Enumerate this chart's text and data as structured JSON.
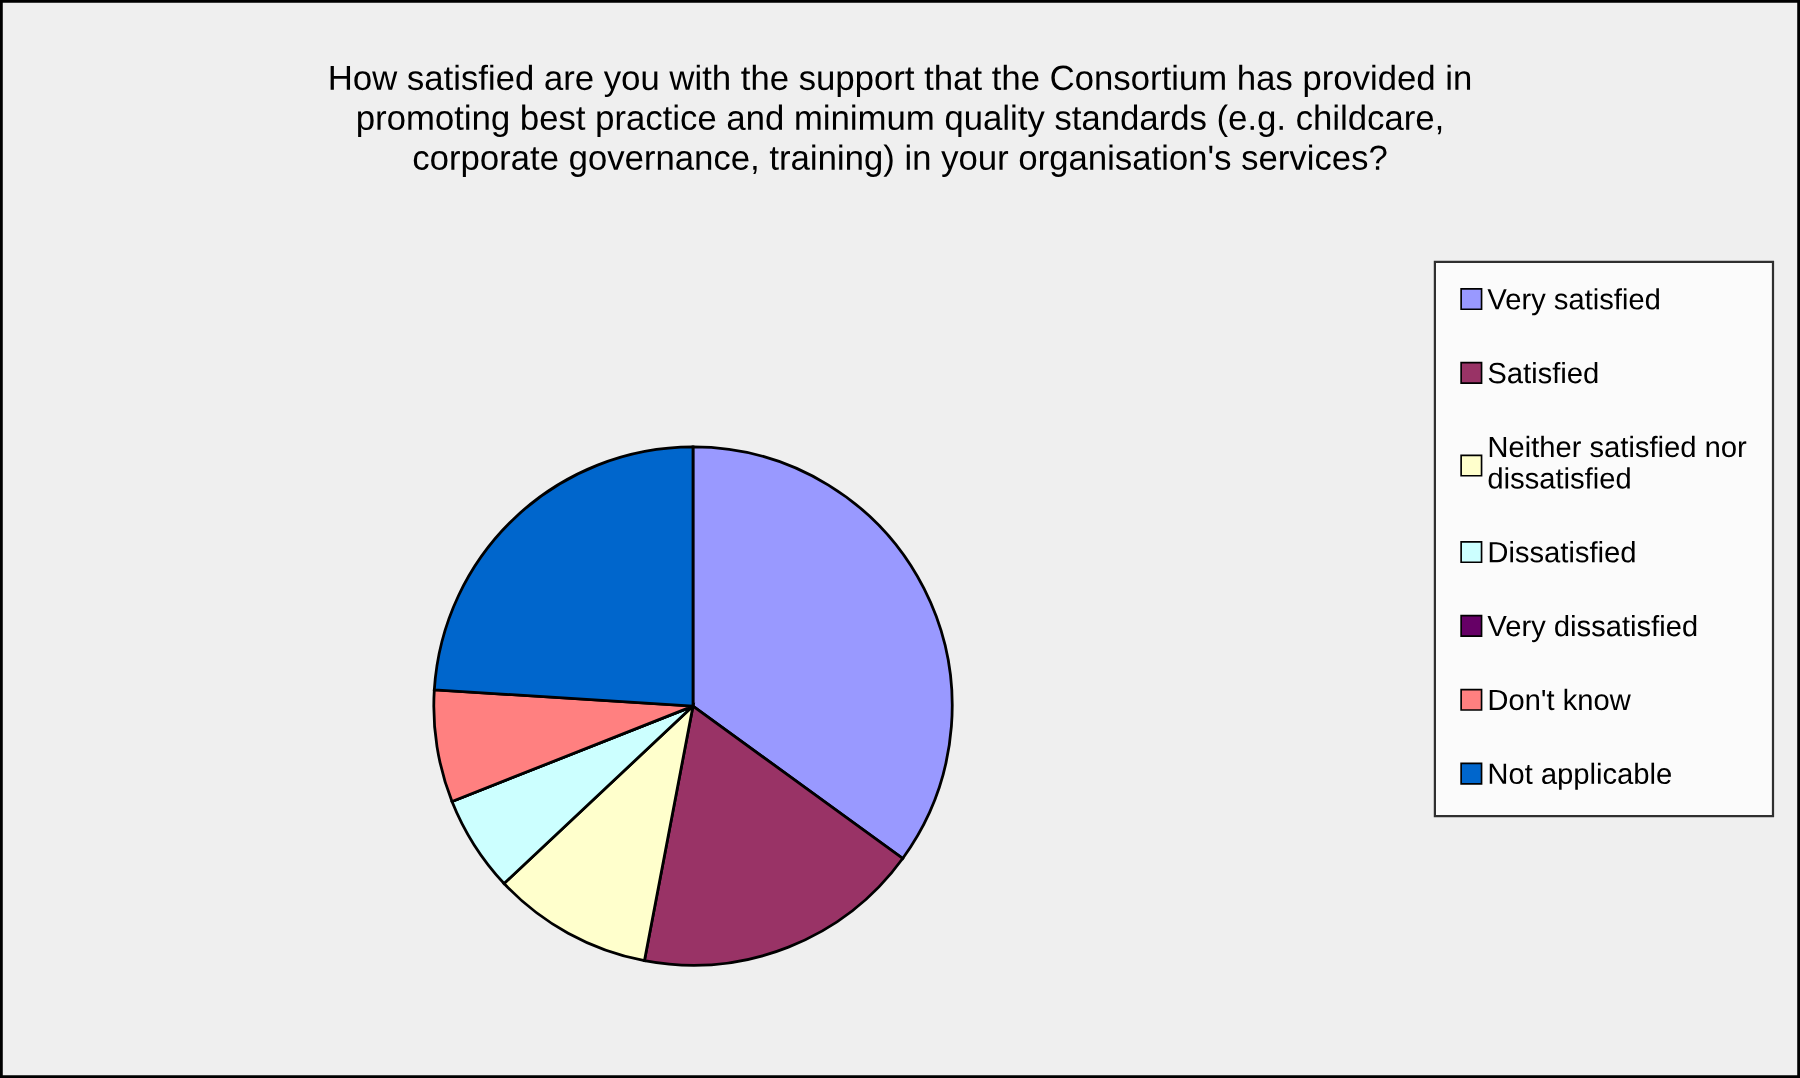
{
  "chart_data": {
    "type": "pie",
    "title": "How satisfied are you with the support that the Consortium has provided in\npromoting best practice and minimum quality standards (e.g. childcare,\ncorporate governance, training) in your organisation's services?",
    "categories": [
      "Very satisfied",
      "Satisfied",
      "Neither satisfied nor\ndissatisfied",
      "Dissatisfied",
      "Very dissatisfied",
      "Don't know",
      "Not applicable"
    ],
    "values": [
      35,
      18,
      10,
      6,
      0,
      7,
      24
    ],
    "colors": [
      "#9999ff",
      "#993366",
      "#ffffcc",
      "#ccffff",
      "#660066",
      "#ff8080",
      "#0066cc"
    ],
    "legend": "right"
  }
}
